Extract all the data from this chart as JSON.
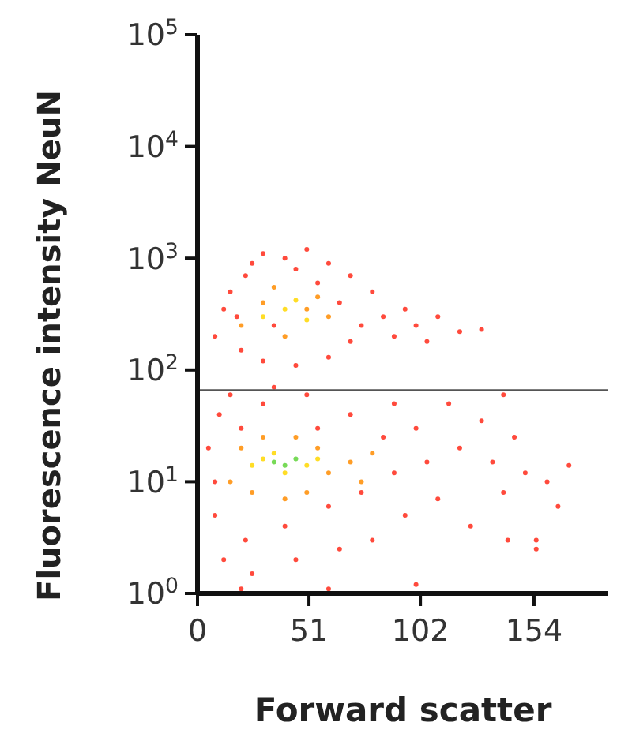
{
  "chart_data": {
    "type": "scatter",
    "xlabel": "Forward scatter",
    "ylabel": "Fluorescence intensity NeuN",
    "log": "y",
    "xlim": [
      0,
      188
    ],
    "ylim": [
      1,
      100000
    ],
    "xticks": [
      0,
      51,
      102,
      154
    ],
    "yticks": [
      {
        "value": 1,
        "label": "10$^{0}$"
      },
      {
        "value": 10,
        "label": "10$^{1}$"
      },
      {
        "value": 100,
        "label": "10$^{2}$"
      },
      {
        "value": 1000,
        "label": "10$^{3}$"
      },
      {
        "value": 10000,
        "label": "10$^{4}$"
      },
      {
        "value": 100000,
        "label": "10$^{5}$"
      }
    ],
    "marker": "circle",
    "ref_lines": [
      {
        "axis": "y",
        "value": 66,
        "color": "#555555"
      }
    ],
    "series": [
      {
        "color": "#ff2a1a",
        "x": [
          8,
          12,
          15,
          20,
          22,
          25,
          30,
          35,
          40,
          45,
          50,
          55,
          60,
          65,
          70,
          75,
          80,
          85,
          90,
          95,
          100,
          105,
          110,
          120,
          130,
          60,
          30,
          45,
          18,
          70,
          5,
          8,
          10,
          12,
          15,
          20,
          22,
          25,
          30,
          35,
          40,
          45,
          50,
          55,
          60,
          65,
          70,
          75,
          80,
          85,
          90,
          95,
          100,
          105,
          110,
          115,
          120,
          125,
          130,
          135,
          140,
          145,
          150,
          155,
          160,
          165,
          170,
          155,
          142,
          20,
          60,
          100,
          140,
          8,
          90
        ],
        "values": [
          200,
          350,
          500,
          150,
          700,
          900,
          1100,
          250,
          1000,
          800,
          1200,
          600,
          900,
          400,
          700,
          250,
          500,
          300,
          200,
          350,
          250,
          180,
          300,
          220,
          230,
          130,
          120,
          110,
          300,
          180,
          20,
          5,
          40,
          2,
          60,
          30,
          3,
          1.5,
          50,
          70,
          4,
          2,
          60,
          30,
          6,
          2.5,
          40,
          8,
          3,
          25,
          12,
          5,
          30,
          15,
          7,
          50,
          20,
          4,
          35,
          15,
          8,
          25,
          12,
          3,
          10,
          6,
          14,
          2.5,
          3,
          1.1,
          1.1,
          1.2,
          60,
          10,
          50
        ]
      },
      {
        "color": "#ff8c00",
        "x": [
          20,
          30,
          40,
          50,
          60,
          35,
          55,
          15,
          20,
          25,
          30,
          50,
          55,
          60,
          70,
          75,
          80,
          40,
          45
        ],
        "values": [
          250,
          400,
          200,
          350,
          300,
          550,
          450,
          10,
          20,
          8,
          25,
          8,
          20,
          12,
          15,
          10,
          18,
          7,
          25
        ]
      },
      {
        "color": "#ffd700",
        "x": [
          30,
          40,
          50,
          45,
          25,
          30,
          40,
          50,
          55,
          35
        ],
        "values": [
          300,
          350,
          280,
          420,
          14,
          16,
          12,
          14,
          16,
          18
        ]
      },
      {
        "color": "#5fd43a",
        "x": [
          35,
          40,
          45
        ],
        "values": [
          15,
          14,
          16
        ]
      }
    ]
  }
}
